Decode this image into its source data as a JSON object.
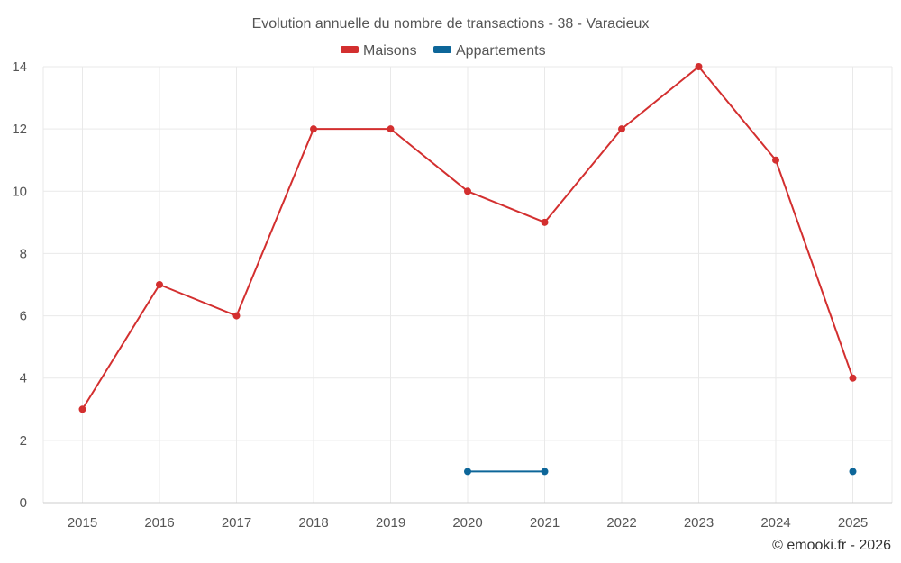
{
  "chart_data": {
    "type": "line",
    "title": "Evolution annuelle du nombre de transactions - 38 - Varacieux",
    "categories": [
      "2015",
      "2016",
      "2017",
      "2018",
      "2019",
      "2020",
      "2021",
      "2022",
      "2023",
      "2024",
      "2025"
    ],
    "ylim": [
      0,
      14
    ],
    "yticks": [
      0,
      2,
      4,
      6,
      8,
      10,
      12,
      14
    ],
    "grid": true,
    "legend_position": "top-center",
    "series": [
      {
        "name": "Maisons",
        "color": "#d32f2f",
        "values": [
          3,
          7,
          6,
          12,
          12,
          10,
          9,
          12,
          14,
          11,
          4
        ]
      },
      {
        "name": "Appartements",
        "color": "#0d6699",
        "values": [
          null,
          null,
          null,
          null,
          null,
          1,
          1,
          null,
          null,
          null,
          1
        ]
      }
    ],
    "credit": "© emooki.fr - 2026"
  }
}
